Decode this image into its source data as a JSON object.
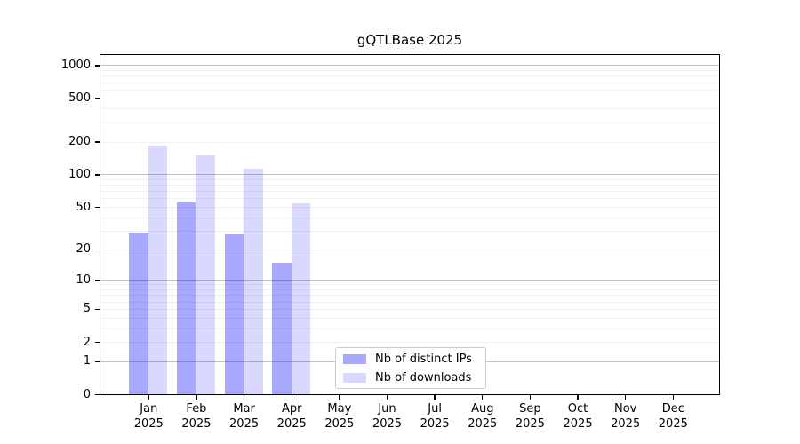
{
  "chart_data": {
    "type": "bar",
    "title": "gQTLBase 2025",
    "categories": [
      "Jan",
      "Feb",
      "Mar",
      "Apr",
      "May",
      "Jun",
      "Jul",
      "Aug",
      "Sep",
      "Oct",
      "Nov",
      "Dec"
    ],
    "year_label": "2025",
    "series": [
      {
        "name": "Nb of distinct IPs",
        "color": "rgba(0,0,255,0.34)",
        "values": [
          29,
          56,
          28,
          15,
          0,
          0,
          0,
          0,
          0,
          0,
          0,
          0
        ]
      },
      {
        "name": "Nb of downloads",
        "color": "rgba(0,0,255,0.15)",
        "values": [
          184,
          150,
          114,
          55,
          0,
          0,
          0,
          0,
          0,
          0,
          0,
          0
        ]
      }
    ],
    "yscale": "log10(value+1)",
    "yticks": [
      1000,
      500,
      200,
      100,
      50,
      20,
      10,
      5,
      2,
      1,
      0
    ],
    "ylim": [
      0,
      1280
    ],
    "xlabel": "",
    "ylabel": "",
    "grid": {
      "major_values": [
        1,
        10,
        100,
        1000
      ],
      "minor_multipliers": [
        2,
        3,
        4,
        5,
        6,
        7,
        8,
        9
      ],
      "minor_decades": [
        1,
        10,
        100
      ]
    },
    "legend_position": "lower-center-inside"
  },
  "colors": {
    "background": "#ffffff",
    "axis": "#000000",
    "text": "#000000",
    "grid_major": "#c2c2c2",
    "grid_minor": "#f0f0f0",
    "legend_border": "#cccccc"
  }
}
